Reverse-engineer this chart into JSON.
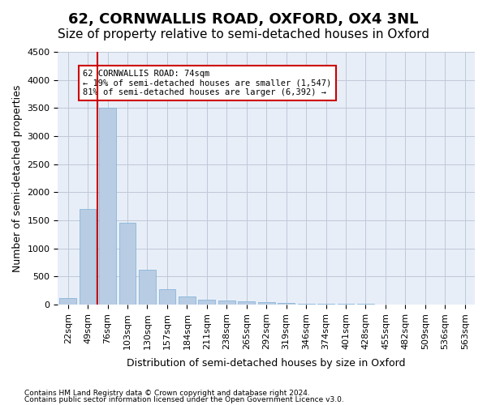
{
  "title": "62, CORNWALLIS ROAD, OXFORD, OX4 3NL",
  "subtitle": "Size of property relative to semi-detached houses in Oxford",
  "xlabel": "Distribution of semi-detached houses by size in Oxford",
  "ylabel": "Number of semi-detached properties",
  "categories": [
    "22sqm",
    "49sqm",
    "76sqm",
    "103sqm",
    "130sqm",
    "157sqm",
    "184sqm",
    "211sqm",
    "238sqm",
    "265sqm",
    "292sqm",
    "319sqm",
    "346sqm",
    "374sqm",
    "401sqm",
    "428sqm",
    "455sqm",
    "482sqm",
    "509sqm",
    "536sqm",
    "563sqm"
  ],
  "values": [
    120,
    1700,
    3500,
    1450,
    620,
    270,
    145,
    85,
    75,
    55,
    40,
    30,
    20,
    15,
    10,
    8,
    5,
    4,
    3,
    2,
    2
  ],
  "bar_color": "#b8cce4",
  "bar_edge_color": "#7bafd4",
  "vline_x": 1.5,
  "vline_color": "#cc0000",
  "annotation_title": "62 CORNWALLIS ROAD: 74sqm",
  "annotation_line1": "← 19% of semi-detached houses are smaller (1,547)",
  "annotation_line2": "81% of semi-detached houses are larger (6,392) →",
  "annotation_box_color": "#cc0000",
  "ylim": [
    0,
    4500
  ],
  "yticks": [
    0,
    500,
    1000,
    1500,
    2000,
    2500,
    3000,
    3500,
    4000,
    4500
  ],
  "footnote1": "Contains HM Land Registry data © Crown copyright and database right 2024.",
  "footnote2": "Contains public sector information licensed under the Open Government Licence v3.0.",
  "bg_color": "#ffffff",
  "ax_bg_color": "#e8eef8",
  "grid_color": "#c0c8d8",
  "title_fontsize": 13,
  "subtitle_fontsize": 11,
  "tick_fontsize": 8
}
